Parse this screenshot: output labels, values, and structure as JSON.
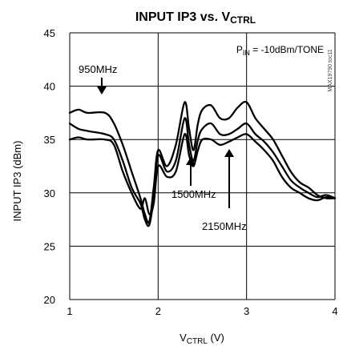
{
  "chart_data": {
    "type": "line",
    "title": "INPUT IP3 vs. V",
    "title_sub": "CTRL",
    "xlabel_main": "V",
    "xlabel_sub": "CTRL",
    "xlabel_rest": " (V)",
    "ylabel": "INPUT IP3 (dBm)",
    "xlim": [
      1,
      4
    ],
    "ylim": [
      20,
      45
    ],
    "x_ticks": [
      "1",
      "2",
      "3",
      "4"
    ],
    "y_ticks": [
      "20",
      "25",
      "30",
      "35",
      "40",
      "45"
    ],
    "grid": true,
    "condition_main": "P",
    "condition_sub": "IN",
    "condition_rest": " = -10dBm/TONE",
    "part_number": "MAX19790 toc11",
    "annotations": [
      {
        "text": "950MHz"
      },
      {
        "text": "1500MHz"
      },
      {
        "text": "2150MHz"
      }
    ],
    "series": [
      {
        "name": "950MHz",
        "x": [
          1.0,
          1.1,
          1.2,
          1.4,
          1.5,
          1.6,
          1.7,
          1.8,
          1.85,
          1.9,
          1.95,
          2.0,
          2.1,
          2.2,
          2.3,
          2.35,
          2.4,
          2.45,
          2.5,
          2.6,
          2.7,
          2.8,
          2.9,
          3.0,
          3.1,
          3.2,
          3.3,
          3.4,
          3.5,
          3.6,
          3.7,
          3.8,
          3.9,
          4.0
        ],
        "y": [
          37.5,
          37.8,
          37.5,
          37.5,
          36.5,
          34.5,
          32.0,
          29.5,
          28.0,
          27.3,
          30.5,
          34.0,
          32.5,
          34.5,
          38.5,
          36.0,
          34.0,
          36.5,
          37.8,
          38.2,
          37.0,
          37.0,
          38.0,
          38.5,
          37.0,
          36.0,
          35.0,
          33.5,
          32.0,
          31.0,
          30.5,
          29.8,
          29.5,
          29.5
        ]
      },
      {
        "name": "1500MHz",
        "x": [
          1.0,
          1.1,
          1.2,
          1.4,
          1.5,
          1.6,
          1.7,
          1.8,
          1.85,
          1.9,
          1.95,
          2.0,
          2.1,
          2.2,
          2.3,
          2.35,
          2.4,
          2.45,
          2.5,
          2.6,
          2.7,
          2.8,
          2.9,
          3.0,
          3.1,
          3.2,
          3.3,
          3.4,
          3.5,
          3.6,
          3.7,
          3.8,
          3.9,
          4.0
        ],
        "y": [
          36.5,
          36.0,
          35.8,
          35.5,
          35.0,
          33.0,
          30.5,
          29.0,
          27.5,
          27.0,
          29.5,
          33.5,
          32.0,
          33.0,
          37.0,
          34.5,
          33.0,
          35.0,
          36.0,
          36.5,
          35.5,
          35.5,
          36.0,
          36.5,
          35.5,
          34.8,
          33.8,
          32.5,
          31.2,
          30.5,
          30.0,
          29.6,
          29.8,
          29.5
        ]
      },
      {
        "name": "2150MHz",
        "x": [
          1.0,
          1.1,
          1.2,
          1.4,
          1.5,
          1.6,
          1.7,
          1.8,
          1.85,
          1.9,
          1.95,
          2.0,
          2.1,
          2.2,
          2.3,
          2.35,
          2.4,
          2.45,
          2.5,
          2.6,
          2.7,
          2.8,
          2.9,
          3.0,
          3.1,
          3.2,
          3.3,
          3.4,
          3.5,
          3.6,
          3.7,
          3.8,
          3.9,
          4.0
        ],
        "y": [
          35.0,
          35.2,
          35.0,
          35.0,
          34.5,
          32.0,
          30.0,
          28.5,
          29.5,
          28.0,
          29.0,
          32.5,
          31.5,
          32.0,
          35.5,
          33.5,
          32.5,
          34.0,
          35.0,
          35.0,
          34.5,
          34.8,
          35.2,
          35.5,
          34.8,
          34.0,
          33.0,
          31.5,
          30.5,
          30.0,
          29.5,
          29.3,
          29.6,
          29.5
        ]
      }
    ]
  }
}
